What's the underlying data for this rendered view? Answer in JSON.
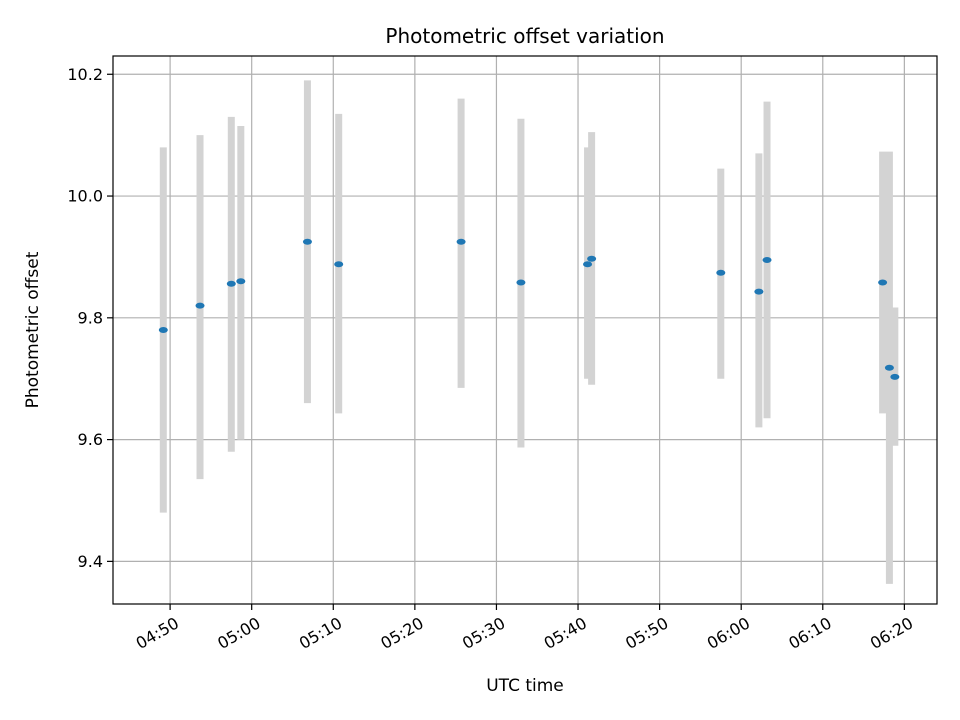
{
  "chart_data": {
    "type": "scatter",
    "title": "Photometric offset variation",
    "xlabel": "UTC time",
    "ylabel": "Photometric offset",
    "xlim": [
      "04:43",
      "06:24"
    ],
    "ylim": [
      9.33,
      10.23
    ],
    "x_ticks": [
      "04:50",
      "05:00",
      "05:10",
      "05:20",
      "05:30",
      "05:40",
      "05:50",
      "06:00",
      "06:10",
      "06:20"
    ],
    "y_ticks": [
      9.4,
      9.6,
      9.8,
      10.0,
      10.2
    ],
    "y_tick_labels": [
      "9.4",
      "9.6",
      "9.8",
      "10.0",
      "10.2"
    ],
    "grid": true,
    "point_color": "#1f77b4",
    "errorbar_color": "#d3d3d3",
    "points": [
      {
        "x": "04:49:10",
        "y": 9.78,
        "ylow": 9.48,
        "yhigh": 10.08
      },
      {
        "x": "04:53:40",
        "y": 9.82,
        "ylow": 9.535,
        "yhigh": 10.1
      },
      {
        "x": "04:57:30",
        "y": 9.856,
        "ylow": 9.58,
        "yhigh": 10.13
      },
      {
        "x": "04:58:40",
        "y": 9.86,
        "ylow": 9.6,
        "yhigh": 10.115
      },
      {
        "x": "05:06:50",
        "y": 9.925,
        "ylow": 9.66,
        "yhigh": 10.19
      },
      {
        "x": "05:10:40",
        "y": 9.888,
        "ylow": 9.643,
        "yhigh": 10.135
      },
      {
        "x": "05:25:40",
        "y": 9.925,
        "ylow": 9.685,
        "yhigh": 10.16
      },
      {
        "x": "05:33:00",
        "y": 9.858,
        "ylow": 9.587,
        "yhigh": 10.127
      },
      {
        "x": "05:41:10",
        "y": 9.888,
        "ylow": 9.7,
        "yhigh": 10.08
      },
      {
        "x": "05:41:40",
        "y": 9.897,
        "ylow": 9.69,
        "yhigh": 10.105
      },
      {
        "x": "05:57:30",
        "y": 9.874,
        "ylow": 9.7,
        "yhigh": 10.045
      },
      {
        "x": "06:02:10",
        "y": 9.843,
        "ylow": 9.62,
        "yhigh": 10.07
      },
      {
        "x": "06:03:10",
        "y": 9.895,
        "ylow": 9.635,
        "yhigh": 10.155
      },
      {
        "x": "06:17:20",
        "y": 9.858,
        "ylow": 9.643,
        "yhigh": 10.073
      },
      {
        "x": "06:18:10",
        "y": 9.718,
        "ylow": 9.363,
        "yhigh": 10.073
      },
      {
        "x": "06:18:50",
        "y": 9.703,
        "ylow": 9.59,
        "yhigh": 9.817
      }
    ]
  }
}
